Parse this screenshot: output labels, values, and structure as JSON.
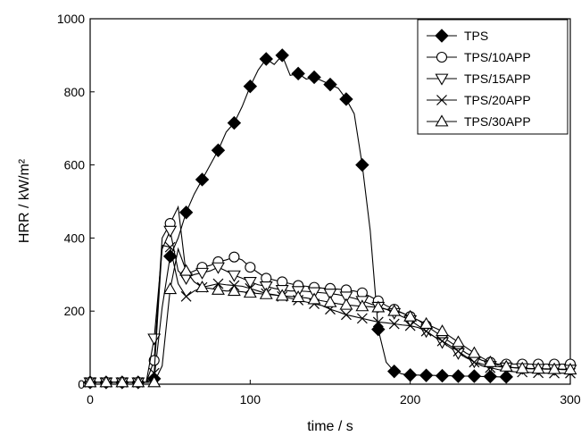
{
  "chart_data": {
    "type": "line",
    "xlabel": "time / s",
    "ylabel": "HRR / kW/m²",
    "xlim": [
      0,
      300
    ],
    "ylim": [
      0,
      1000
    ],
    "xticks": [
      0,
      100,
      200,
      300
    ],
    "yticks": [
      0,
      200,
      400,
      600,
      800,
      1000
    ],
    "grid": false,
    "legend_position": "top-right",
    "series": [
      {
        "name": "TPS",
        "marker": "diamond-filled",
        "x": [
          0,
          5,
          10,
          15,
          20,
          25,
          30,
          35,
          40,
          45,
          50,
          55,
          60,
          65,
          70,
          75,
          80,
          85,
          90,
          95,
          100,
          105,
          110,
          115,
          120,
          125,
          130,
          135,
          140,
          145,
          150,
          155,
          160,
          165,
          170,
          175,
          180,
          185,
          190,
          195,
          200,
          205,
          210,
          215,
          220,
          225,
          230,
          235,
          240,
          245,
          250,
          255,
          260
        ],
        "y": [
          5,
          5,
          5,
          5,
          5,
          5,
          5,
          5,
          15,
          210,
          350,
          400,
          470,
          520,
          560,
          600,
          640,
          690,
          715,
          760,
          815,
          860,
          890,
          875,
          900,
          845,
          850,
          835,
          840,
          830,
          820,
          810,
          780,
          740,
          600,
          420,
          150,
          60,
          35,
          28,
          25,
          25,
          24,
          24,
          23,
          23,
          22,
          22,
          22,
          21,
          21,
          20,
          20
        ]
      },
      {
        "name": "TPS/10APP",
        "marker": "circle-open",
        "x": [
          0,
          5,
          10,
          15,
          20,
          25,
          30,
          35,
          40,
          45,
          50,
          55,
          60,
          65,
          70,
          75,
          80,
          85,
          90,
          95,
          100,
          105,
          110,
          115,
          120,
          125,
          130,
          135,
          140,
          145,
          150,
          155,
          160,
          165,
          170,
          175,
          180,
          185,
          190,
          195,
          200,
          205,
          210,
          215,
          220,
          225,
          230,
          235,
          240,
          245,
          250,
          255,
          260,
          265,
          270,
          275,
          280,
          285,
          290,
          295,
          300
        ],
        "y": [
          5,
          5,
          5,
          5,
          5,
          5,
          5,
          5,
          65,
          400,
          440,
          485,
          300,
          310,
          320,
          325,
          335,
          340,
          348,
          340,
          320,
          305,
          290,
          285,
          280,
          275,
          270,
          268,
          265,
          263,
          262,
          260,
          258,
          255,
          250,
          240,
          228,
          215,
          205,
          195,
          185,
          175,
          160,
          145,
          130,
          115,
          100,
          85,
          75,
          65,
          60,
          55,
          55,
          55,
          55,
          55,
          55,
          55,
          55,
          55,
          55
        ]
      },
      {
        "name": "TPS/15APP",
        "marker": "triangle-down-open",
        "x": [
          0,
          5,
          10,
          15,
          20,
          25,
          30,
          35,
          40,
          45,
          50,
          55,
          60,
          65,
          70,
          75,
          80,
          85,
          90,
          95,
          100,
          105,
          110,
          115,
          120,
          125,
          130,
          135,
          140,
          145,
          150,
          155,
          160,
          165,
          170,
          175,
          180,
          185,
          190,
          195,
          200,
          205,
          210,
          215,
          220,
          225,
          230,
          235,
          240,
          245,
          250,
          255,
          260,
          265,
          270,
          275,
          280,
          285,
          290,
          295,
          300
        ],
        "y": [
          5,
          5,
          5,
          5,
          5,
          5,
          5,
          5,
          125,
          370,
          420,
          310,
          290,
          300,
          305,
          310,
          320,
          310,
          298,
          290,
          280,
          272,
          268,
          262,
          258,
          255,
          255,
          254,
          252,
          250,
          248,
          245,
          240,
          235,
          228,
          220,
          212,
          205,
          195,
          185,
          175,
          160,
          145,
          130,
          115,
          100,
          85,
          72,
          62,
          55,
          50,
          48,
          46,
          45,
          44,
          43,
          42,
          42,
          41,
          41,
          40
        ]
      },
      {
        "name": "TPS/20APP",
        "marker": "cross",
        "x": [
          0,
          5,
          10,
          15,
          20,
          25,
          30,
          35,
          40,
          45,
          50,
          55,
          60,
          65,
          70,
          75,
          80,
          85,
          90,
          95,
          100,
          105,
          110,
          115,
          120,
          125,
          130,
          135,
          140,
          145,
          150,
          155,
          160,
          165,
          170,
          175,
          180,
          185,
          190,
          195,
          200,
          205,
          210,
          215,
          220,
          225,
          230,
          235,
          240,
          245,
          250,
          255,
          260,
          265,
          270,
          275,
          280,
          285,
          290,
          295,
          300
        ],
        "y": [
          5,
          5,
          5,
          5,
          5,
          5,
          5,
          5,
          30,
          380,
          375,
          275,
          240,
          255,
          265,
          270,
          275,
          272,
          270,
          268,
          262,
          255,
          248,
          245,
          240,
          235,
          230,
          225,
          220,
          215,
          205,
          198,
          190,
          185,
          180,
          175,
          170,
          168,
          165,
          162,
          160,
          155,
          145,
          130,
          118,
          105,
          90,
          75,
          60,
          50,
          45,
          40,
          36,
          34,
          33,
          32,
          31,
          30,
          30,
          30,
          30
        ]
      },
      {
        "name": "TPS/30APP",
        "marker": "triangle-up-open",
        "x": [
          0,
          5,
          10,
          15,
          20,
          25,
          30,
          35,
          40,
          45,
          50,
          55,
          60,
          65,
          70,
          75,
          80,
          85,
          90,
          95,
          100,
          105,
          110,
          115,
          120,
          125,
          130,
          135,
          140,
          145,
          150,
          155,
          160,
          165,
          170,
          175,
          180,
          185,
          190,
          195,
          200,
          205,
          210,
          215,
          220,
          225,
          230,
          235,
          240,
          245,
          250,
          255,
          260,
          265,
          270,
          275,
          280,
          285,
          290,
          295,
          300
        ],
        "y": [
          5,
          5,
          5,
          5,
          5,
          5,
          5,
          5,
          5,
          50,
          260,
          370,
          310,
          280,
          265,
          262,
          258,
          255,
          255,
          253,
          250,
          248,
          246,
          244,
          242,
          240,
          238,
          236,
          232,
          228,
          224,
          220,
          217,
          215,
          213,
          212,
          210,
          205,
          200,
          195,
          185,
          175,
          165,
          155,
          145,
          130,
          115,
          100,
          85,
          72,
          60,
          52,
          48,
          45,
          43,
          42,
          42,
          41,
          41,
          40,
          40
        ]
      }
    ]
  }
}
